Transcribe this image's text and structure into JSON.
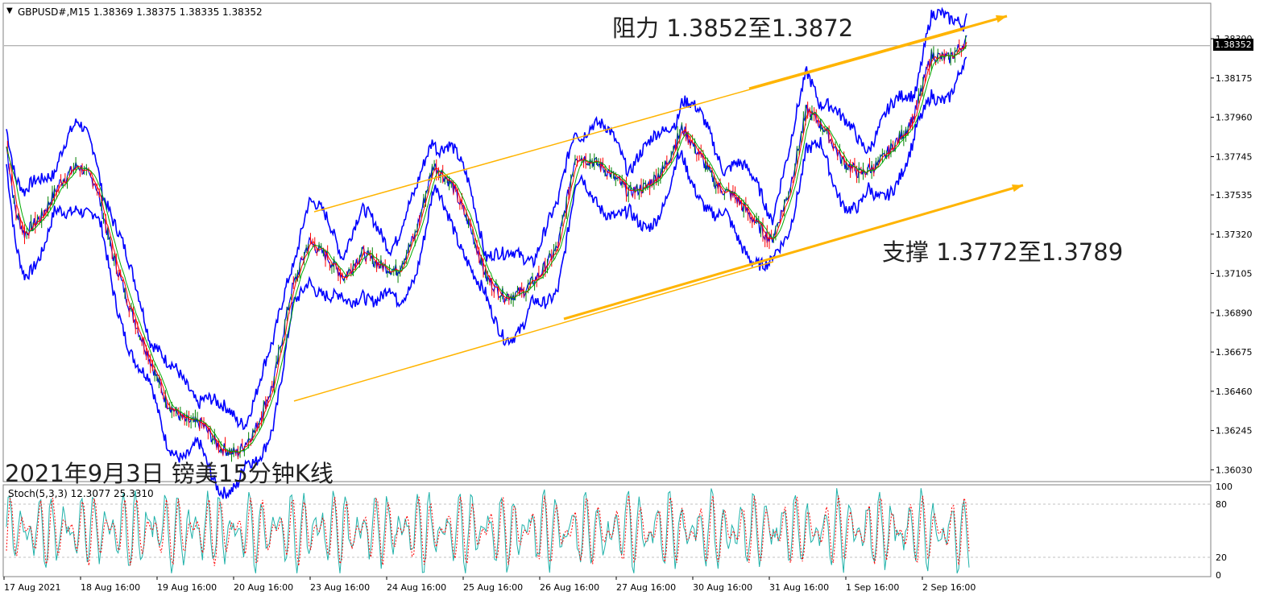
{
  "header": {
    "symbol": "GBPUSD#,M15",
    "ohlc": "1.38369 1.38375 1.38335 1.38352"
  },
  "annotations": {
    "resistance": "阻力 1.3852至1.3872",
    "support": "支撑 1.3772至1.3789",
    "date_title": "2021年9月3日 镑美15分钟K线"
  },
  "current_price": "1.38352",
  "colors": {
    "bollinger": "#0000ff",
    "channel": "#ffb400",
    "candle_bull": "#008000",
    "candle_bear": "#ff0000",
    "ma_fast": "#ff0000",
    "ma_slow": "#00aa00",
    "stoch_main": "#20b2aa",
    "stoch_signal": "#ff0000",
    "grid": "#a0a0a0"
  },
  "chart_data": [
    {
      "type": "candlestick",
      "title": "GBPUSD#,M15",
      "x_ticks": [
        "17 Aug 2021",
        "18 Aug 16:00",
        "19 Aug 16:00",
        "20 Aug 16:00",
        "23 Aug 16:00",
        "24 Aug 16:00",
        "25 Aug 16:00",
        "26 Aug 16:00",
        "27 Aug 16:00",
        "30 Aug 16:00",
        "31 Aug 16:00",
        "1 Sep 16:00",
        "2 Sep 16:00"
      ],
      "y_ticks": [
        1.3603,
        1.36245,
        1.3646,
        1.36675,
        1.3689,
        1.37105,
        1.3732,
        1.37535,
        1.37745,
        1.3796,
        1.38175,
        1.3839
      ],
      "ylim": [
        1.3597,
        1.3858
      ],
      "price_path": [
        [
          0,
          1.378
        ],
        [
          0.5,
          1.3745
        ],
        [
          1,
          1.3732
        ],
        [
          2,
          1.3742
        ],
        [
          3,
          1.376
        ],
        [
          4,
          1.377
        ],
        [
          5,
          1.376
        ],
        [
          6,
          1.372
        ],
        [
          7,
          1.369
        ],
        [
          8,
          1.3665
        ],
        [
          9,
          1.364
        ],
        [
          10,
          1.363
        ],
        [
          11,
          1.3628
        ],
        [
          12,
          1.3615
        ],
        [
          13,
          1.3612
        ],
        [
          14,
          1.3625
        ],
        [
          15,
          1.365
        ],
        [
          16,
          1.37
        ],
        [
          17,
          1.3728
        ],
        [
          18,
          1.372
        ],
        [
          19,
          1.3708
        ],
        [
          20,
          1.3722
        ],
        [
          21,
          1.3715
        ],
        [
          22,
          1.3712
        ],
        [
          23,
          1.3732
        ],
        [
          24,
          1.377
        ],
        [
          25,
          1.376
        ],
        [
          26,
          1.3738
        ],
        [
          27,
          1.3708
        ],
        [
          28,
          1.3698
        ],
        [
          29,
          1.37
        ],
        [
          30,
          1.371
        ],
        [
          31,
          1.3725
        ],
        [
          32,
          1.3775
        ],
        [
          33,
          1.3772
        ],
        [
          34,
          1.3765
        ],
        [
          35,
          1.3755
        ],
        [
          36,
          1.3758
        ],
        [
          37,
          1.3768
        ],
        [
          38,
          1.379
        ],
        [
          39,
          1.3775
        ],
        [
          40,
          1.3758
        ],
        [
          41,
          1.3752
        ],
        [
          42,
          1.374
        ],
        [
          43,
          1.3728
        ],
        [
          44,
          1.3755
        ],
        [
          45,
          1.38
        ],
        [
          46,
          1.379
        ],
        [
          47,
          1.3772
        ],
        [
          48,
          1.3765
        ],
        [
          49,
          1.377
        ],
        [
          50,
          1.3782
        ],
        [
          51,
          1.3795
        ],
        [
          52,
          1.383
        ],
        [
          53,
          1.3828
        ],
        [
          54,
          1.3838
        ]
      ],
      "bollinger_width": 0.0016,
      "channel_upper": {
        "from": [
          "23 Aug 00:00",
          1.3755
        ],
        "to": [
          "3 Sep 01:00",
          1.3855
        ]
      },
      "channel_lower": {
        "from": [
          "20 Aug 16:00",
          1.364
        ],
        "to": [
          "3 Sep 01:00",
          1.3752
        ]
      },
      "current_price": 1.38352
    },
    {
      "type": "line",
      "title": "Stoch(5,3,3)",
      "values_text": "12.3077 25.3310",
      "series": [
        {
          "name": "main",
          "last": 12.3077
        },
        {
          "name": "signal",
          "last": 25.331
        }
      ],
      "y_ticks": [
        0,
        20,
        80,
        100
      ],
      "levels": [
        20,
        80
      ],
      "ylim": [
        0,
        100
      ]
    }
  ]
}
